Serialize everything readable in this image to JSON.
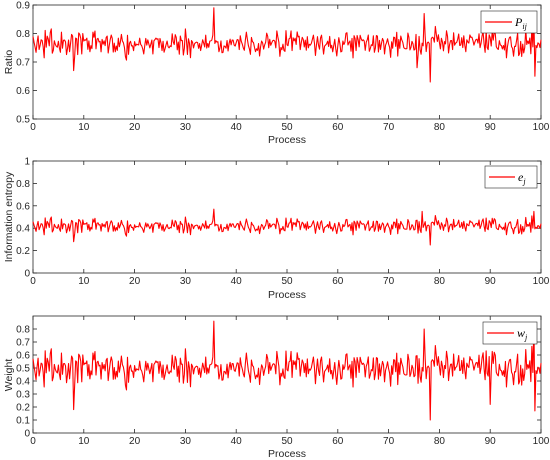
{
  "chart_data": [
    {
      "type": "line",
      "xlabel": "Process",
      "ylabel": "Ratio",
      "xlim": [
        0,
        100
      ],
      "ylim": [
        0.5,
        0.9
      ],
      "xticks": [
        0,
        10,
        20,
        30,
        40,
        50,
        60,
        70,
        80,
        90,
        100
      ],
      "yticks": [
        0.5,
        0.6,
        0.7,
        0.8,
        0.9
      ],
      "ytick_labels": [
        "0.5",
        "0.6",
        "0.7",
        "0.8",
        "0.9"
      ],
      "legend": {
        "base": "P",
        "sub": "ij",
        "position": "top-right"
      },
      "series": [
        {
          "color": "#ff0000",
          "mean": 0.765,
          "amplitude": 0.045,
          "spikes": [
            [
              35.5,
              0.89
            ],
            [
              77,
              0.87
            ],
            [
              78.3,
              0.63
            ],
            [
              75.5,
              0.68
            ],
            [
              98.5,
              0.86
            ],
            [
              98.8,
              0.65
            ],
            [
              8,
              0.67
            ]
          ]
        }
      ]
    },
    {
      "type": "line",
      "xlabel": "Process",
      "ylabel": "Information entropy",
      "xlim": [
        0,
        100
      ],
      "ylim": [
        0,
        1
      ],
      "xticks": [
        0,
        10,
        20,
        30,
        40,
        50,
        60,
        70,
        80,
        90,
        100
      ],
      "yticks": [
        0,
        0.2,
        0.4,
        0.6,
        0.8,
        1
      ],
      "ytick_labels": [
        "0",
        "0.2",
        "0.4",
        "0.6",
        "0.8",
        "1"
      ],
      "legend": {
        "base": "e",
        "sub": "j",
        "position": "top-right"
      },
      "series": [
        {
          "color": "#ff0000",
          "mean": 0.42,
          "amplitude": 0.07,
          "spikes": [
            [
              35.5,
              0.57
            ],
            [
              76.5,
              0.55
            ],
            [
              78.3,
              0.25
            ],
            [
              8,
              0.28
            ],
            [
              98.5,
              0.55
            ]
          ]
        }
      ]
    },
    {
      "type": "line",
      "xlabel": "Process",
      "ylabel": "Weight",
      "xlim": [
        0,
        100
      ],
      "ylim": [
        0,
        0.9
      ],
      "xticks": [
        0,
        10,
        20,
        30,
        40,
        50,
        60,
        70,
        80,
        90,
        100
      ],
      "yticks": [
        0,
        0.1,
        0.2,
        0.3,
        0.4,
        0.5,
        0.6,
        0.7,
        0.8
      ],
      "ytick_labels": [
        "0",
        "0.1",
        "0.2",
        "0.3",
        "0.4",
        "0.5",
        "0.6",
        "0.7",
        "0.8"
      ],
      "legend": {
        "base": "w",
        "sub": "j",
        "position": "top-right"
      },
      "series": [
        {
          "color": "#ff0000",
          "mean": 0.5,
          "amplitude": 0.13,
          "spikes": [
            [
              35.5,
              0.86
            ],
            [
              77,
              0.8
            ],
            [
              78.3,
              0.1
            ],
            [
              8,
              0.18
            ],
            [
              98.5,
              0.85
            ],
            [
              98.8,
              0.17
            ],
            [
              90,
              0.22
            ]
          ]
        }
      ]
    }
  ]
}
